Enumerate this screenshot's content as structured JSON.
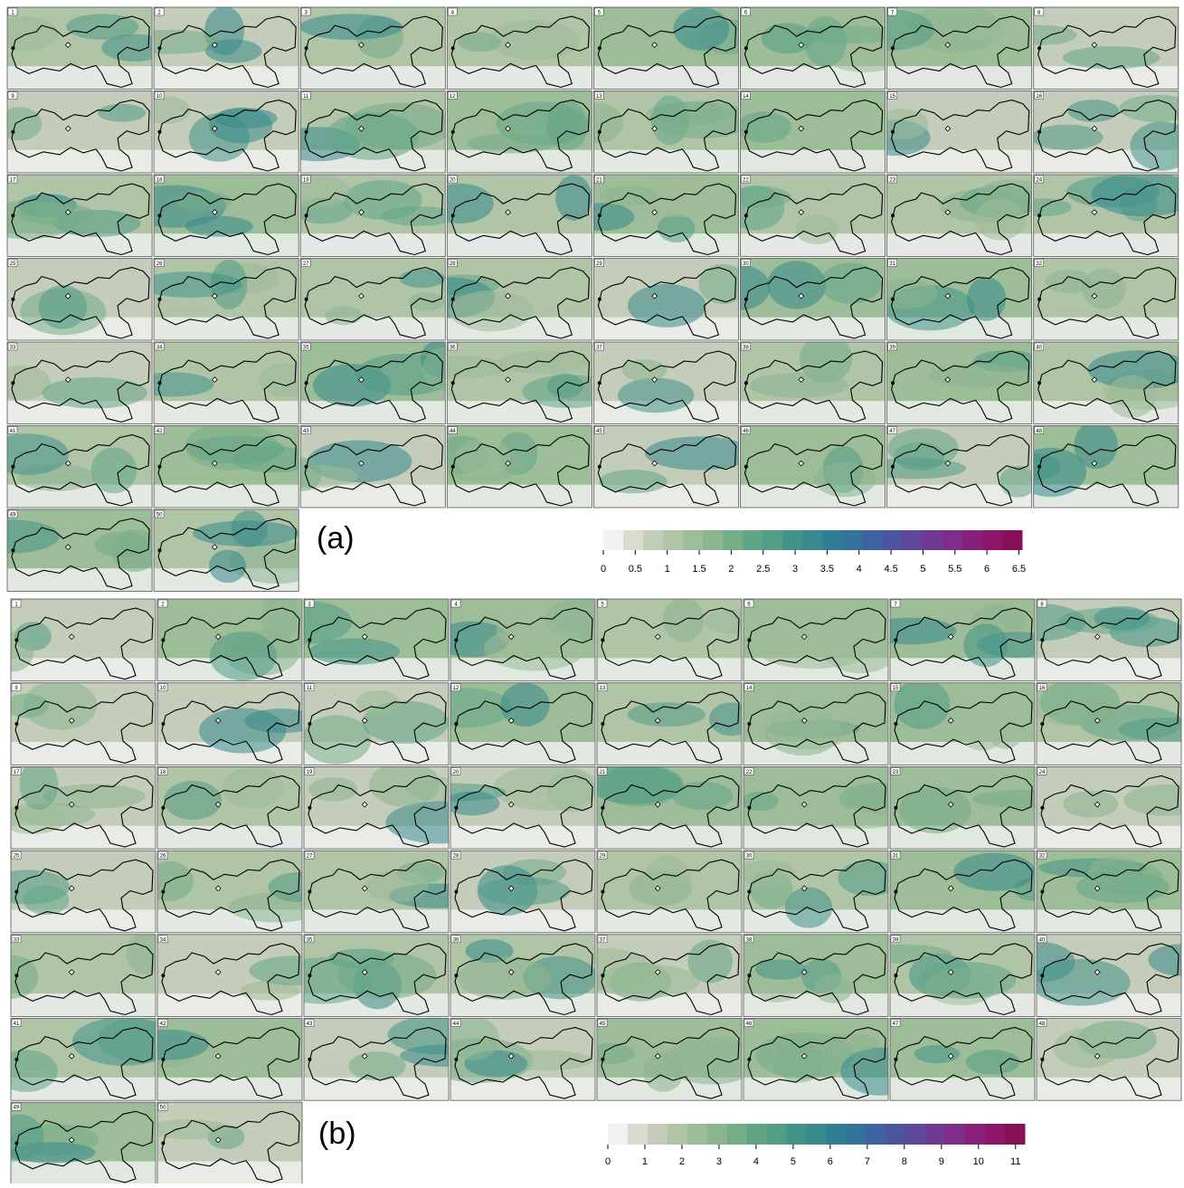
{
  "figures": [
    {
      "label": "(a)",
      "panels": [
        1,
        2,
        3,
        4,
        5,
        6,
        7,
        8,
        9,
        10,
        11,
        12,
        13,
        14,
        15,
        16,
        17,
        18,
        19,
        20,
        21,
        22,
        23,
        24,
        25,
        26,
        27,
        28,
        29,
        30,
        31,
        32,
        33,
        34,
        35,
        36,
        37,
        38,
        39,
        40,
        41,
        42,
        43,
        44,
        45,
        46,
        47,
        48,
        49,
        50
      ],
      "colorbar": {
        "lim": [
          0,
          6.55
        ],
        "ticks": [
          0,
          0.5,
          1,
          1.5,
          2,
          2.5,
          3,
          3.5,
          4,
          4.5,
          5,
          5.5,
          6,
          6.5
        ],
        "colors": [
          "#f2f2f2",
          "#d9dad2",
          "#c4cdb9",
          "#b0c4a6",
          "#9dbc98",
          "#8ab58f",
          "#75ad89",
          "#62a586",
          "#519d86",
          "#429488",
          "#368a8d",
          "#307e94",
          "#34719b",
          "#3f63a0",
          "#4e55a0",
          "#5f479b",
          "#703a93",
          "#7e2d88",
          "#88217a",
          "#8c166a",
          "#881058"
        ]
      }
    },
    {
      "label": "(b)",
      "panels": [
        1,
        2,
        3,
        4,
        5,
        6,
        7,
        8,
        9,
        10,
        11,
        12,
        13,
        14,
        15,
        16,
        17,
        18,
        19,
        20,
        21,
        22,
        23,
        24,
        25,
        26,
        27,
        28,
        29,
        30,
        31,
        32,
        33,
        34,
        35,
        36,
        37,
        38,
        39,
        40,
        41,
        42,
        43,
        44,
        45,
        46,
        47,
        48,
        49,
        50
      ],
      "colorbar": {
        "lim": [
          0,
          11.25
        ],
        "ticks": [
          0,
          1,
          2,
          3,
          4,
          5,
          6,
          7,
          8,
          9,
          10,
          11
        ],
        "colors": [
          "#f2f2f2",
          "#d9dad2",
          "#c4cdb9",
          "#b0c4a6",
          "#9dbc98",
          "#8ab58f",
          "#75ad89",
          "#62a586",
          "#519d86",
          "#429488",
          "#368a8d",
          "#307e94",
          "#34719b",
          "#3f63a0",
          "#4e55a0",
          "#5f479b",
          "#703a93",
          "#7e2d88",
          "#88217a",
          "#8c166a",
          "#881058"
        ]
      }
    }
  ]
}
